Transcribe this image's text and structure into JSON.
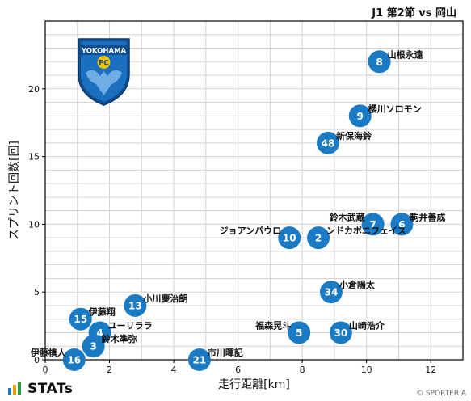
{
  "header": {
    "title": "J1 第2節 vs 岡山"
  },
  "footer": {
    "brand": "STATs",
    "copyright": "© SPORTERIA"
  },
  "team_logo": {
    "name": "YOKOHAMA FC",
    "wordmark": "YOKOHAMA",
    "badge": "FC",
    "colors": {
      "primary": "#1b6fbf",
      "secondary": "#0e4d8f",
      "accent": "#f2c300"
    }
  },
  "colors": {
    "point": "#1a7bc4",
    "point_text": "#ffffff",
    "grid": "#d3d3d3",
    "axis": "#000000"
  },
  "chart_data": {
    "type": "scatter",
    "title": "J1 第2節 vs 岡山",
    "xlabel": "走行距離[km]",
    "ylabel": "スプリント回数[回]",
    "xlim": [
      0,
      13
    ],
    "ylim": [
      0,
      25
    ],
    "x_ticks": [
      0,
      2,
      4,
      6,
      8,
      10,
      12
    ],
    "y_ticks": [
      0,
      5,
      10,
      15,
      20
    ],
    "grid": true,
    "points": [
      {
        "number": "8",
        "name": "山根永遠",
        "x": 10.4,
        "y": 22,
        "label_pos": "right"
      },
      {
        "number": "9",
        "name": "櫻川ソロモン",
        "x": 9.8,
        "y": 18,
        "label_pos": "right"
      },
      {
        "number": "48",
        "name": "新保海鈴",
        "x": 8.8,
        "y": 16,
        "label_pos": "right"
      },
      {
        "number": "7",
        "name": "鈴木武蔵",
        "x": 10.2,
        "y": 10,
        "label_pos": "left"
      },
      {
        "number": "6",
        "name": "駒井善成",
        "x": 11.1,
        "y": 10,
        "label_pos": "right"
      },
      {
        "number": "10",
        "name": "ジョアンパウロ",
        "x": 7.6,
        "y": 9,
        "label_pos": "left"
      },
      {
        "number": "2",
        "name": "ンドカボニフェイス",
        "x": 8.5,
        "y": 9,
        "label_pos": "right"
      },
      {
        "number": "34",
        "name": "小倉陽太",
        "x": 8.9,
        "y": 5,
        "label_pos": "right"
      },
      {
        "number": "13",
        "name": "小川慶治朗",
        "x": 2.8,
        "y": 4,
        "label_pos": "right"
      },
      {
        "number": "15",
        "name": "伊藤翔",
        "x": 1.1,
        "y": 3,
        "label_pos": "right"
      },
      {
        "number": "4",
        "name": "ユーリララ",
        "x": 1.7,
        "y": 2,
        "label_pos": "right"
      },
      {
        "number": "5",
        "name": "福森晃斗",
        "x": 7.9,
        "y": 2,
        "label_pos": "left"
      },
      {
        "number": "30",
        "name": "山崎浩介",
        "x": 9.2,
        "y": 2,
        "label_pos": "right"
      },
      {
        "number": "3",
        "name": "鈴木準弥",
        "x": 1.5,
        "y": 1,
        "label_pos": "right"
      },
      {
        "number": "21",
        "name": "市川暉記",
        "x": 4.8,
        "y": 0,
        "label_pos": "right"
      },
      {
        "number": "16",
        "name": "伊藤槙人",
        "x": 0.9,
        "y": 0,
        "label_pos": "left"
      }
    ]
  }
}
